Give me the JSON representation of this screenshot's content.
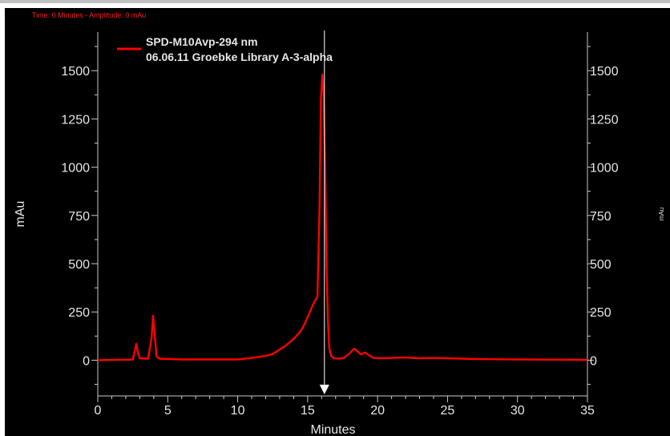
{
  "status_readout": "Time:  0 Minutes - Amplitude:  0 mAu",
  "colors": {
    "background": "#000000",
    "trace": "#ff0000",
    "axis": "#c8c8c8",
    "text": "#e6e6e6",
    "status": "#ff2020",
    "cursor": "#ffffff"
  },
  "chart_data": {
    "type": "line",
    "xlabel": "Minutes",
    "ylabel": "mAu",
    "ylabel_right": "mAu",
    "xlim": [
      0,
      35
    ],
    "ylim": [
      -185,
      1700
    ],
    "x_ticks": [
      0,
      5,
      10,
      15,
      20,
      25,
      30,
      35
    ],
    "y_ticks": [
      0,
      250,
      500,
      750,
      1000,
      1250,
      1500
    ],
    "grid": false,
    "legend_position": "top-left",
    "legend": [
      "SPD-M10Avp-294 nm",
      "06.06.11 Groebke Library A-3-alpha"
    ],
    "cursor_x": 16.2,
    "series": [
      {
        "name": "SPD-M10Avp-294 nm",
        "x": [
          0,
          2.5,
          2.65,
          2.75,
          2.85,
          3.0,
          3.6,
          3.85,
          3.95,
          4.05,
          4.2,
          4.4,
          6,
          8,
          10,
          11,
          12,
          12.5,
          13,
          13.5,
          14,
          14.5,
          14.8,
          15.1,
          15.4,
          15.7,
          15.85,
          15.95,
          16.05,
          16.15,
          16.25,
          16.35,
          16.45,
          16.55,
          16.7,
          16.9,
          17.2,
          17.6,
          18.0,
          18.3,
          18.5,
          18.8,
          19.1,
          19.4,
          19.7,
          20.2,
          21,
          22,
          23,
          24,
          25,
          26,
          27,
          28,
          30,
          32,
          35
        ],
        "y": [
          0,
          3,
          50,
          85,
          45,
          10,
          8,
          120,
          230,
          150,
          20,
          8,
          4,
          4,
          4,
          12,
          22,
          32,
          55,
          80,
          110,
          150,
          190,
          240,
          290,
          330,
          800,
          1350,
          1480,
          1380,
          1000,
          500,
          200,
          60,
          20,
          10,
          8,
          12,
          35,
          60,
          50,
          30,
          40,
          25,
          12,
          10,
          12,
          14,
          10,
          12,
          10,
          8,
          6,
          5,
          4,
          3,
          2
        ]
      }
    ]
  }
}
